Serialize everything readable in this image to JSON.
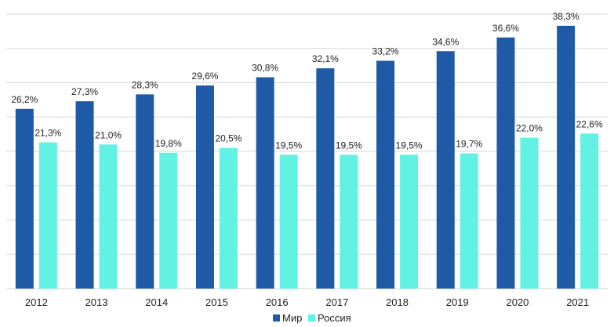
{
  "chart_data": {
    "type": "bar",
    "title": "",
    "xlabel": "",
    "ylabel": "",
    "categories": [
      "2012",
      "2013",
      "2014",
      "2015",
      "2016",
      "2017",
      "2018",
      "2019",
      "2020",
      "2021"
    ],
    "series": [
      {
        "name": "Мир",
        "color": "#1f5aa6",
        "values": [
          26.2,
          27.3,
          28.3,
          29.6,
          30.8,
          32.1,
          33.2,
          34.6,
          36.6,
          38.3
        ],
        "labels": [
          "26,2%",
          "27,3%",
          "28,3%",
          "29,6%",
          "30,8%",
          "32,1%",
          "33,2%",
          "34,6%",
          "36,6%",
          "38,3%"
        ]
      },
      {
        "name": "Россия",
        "color": "#62f2e3",
        "values": [
          21.3,
          21.0,
          19.8,
          20.5,
          19.5,
          19.5,
          19.5,
          19.7,
          22.0,
          22.6
        ],
        "labels": [
          "21,3%",
          "21,0%",
          "19,8%",
          "20,5%",
          "19,5%",
          "19,5%",
          "19,5%",
          "19,7%",
          "22,0%",
          "22,6%"
        ]
      }
    ],
    "ylim": [
      0,
      40
    ],
    "grid": true,
    "legend": "bottom-center",
    "show_y_ticks": false
  }
}
